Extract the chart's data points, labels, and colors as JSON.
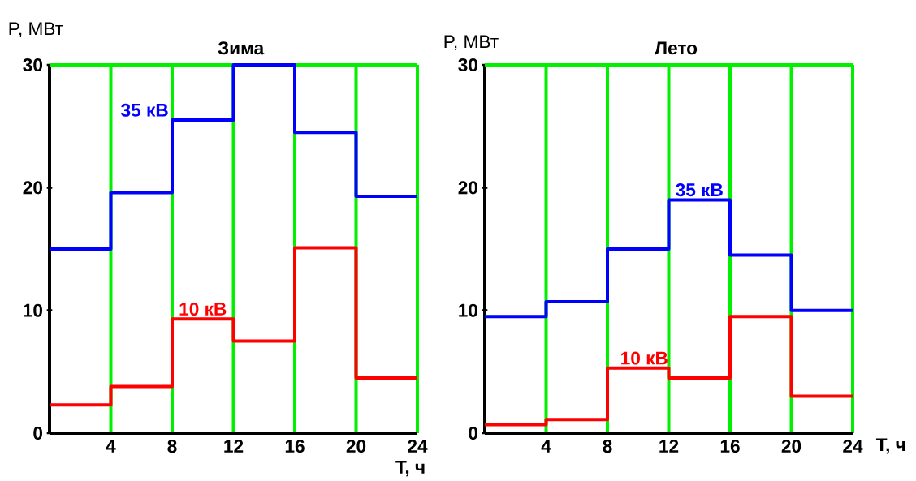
{
  "chart_data": [
    {
      "type": "step",
      "title": "Зима",
      "xlabel": "T, ч",
      "ylabel": "P, МВт",
      "x": [
        0,
        4,
        8,
        12,
        16,
        20,
        24
      ],
      "xlim": [
        0,
        24
      ],
      "ylim": [
        0,
        30
      ],
      "xticks": [
        4,
        8,
        12,
        16,
        20,
        24
      ],
      "yticks": [
        0,
        10,
        20,
        30
      ],
      "grid": "x",
      "series": [
        {
          "name": "35 кВ",
          "color": "#0000ff",
          "values": [
            15.0,
            19.6,
            25.5,
            30.0,
            24.5,
            19.3,
            19.3
          ]
        },
        {
          "name": "10 кВ",
          "color": "#ff0000",
          "values": [
            2.3,
            3.8,
            9.3,
            7.5,
            15.1,
            4.5,
            4.5
          ]
        }
      ]
    },
    {
      "type": "step",
      "title": "Лето",
      "xlabel": "T, ч",
      "ylabel": "P, МВт",
      "x": [
        0,
        4,
        8,
        12,
        16,
        20,
        24
      ],
      "xlim": [
        0,
        24
      ],
      "ylim": [
        0,
        30
      ],
      "xticks": [
        4,
        8,
        12,
        16,
        20,
        24
      ],
      "yticks": [
        0,
        10,
        20,
        30
      ],
      "grid": "x",
      "series": [
        {
          "name": "35 кВ",
          "color": "#0000ff",
          "values": [
            9.5,
            10.7,
            15.0,
            19.0,
            14.5,
            10.0,
            10.0
          ]
        },
        {
          "name": "10 кВ",
          "color": "#ff0000",
          "values": [
            0.7,
            1.1,
            5.3,
            4.5,
            9.5,
            3.0,
            3.0
          ]
        }
      ]
    }
  ]
}
